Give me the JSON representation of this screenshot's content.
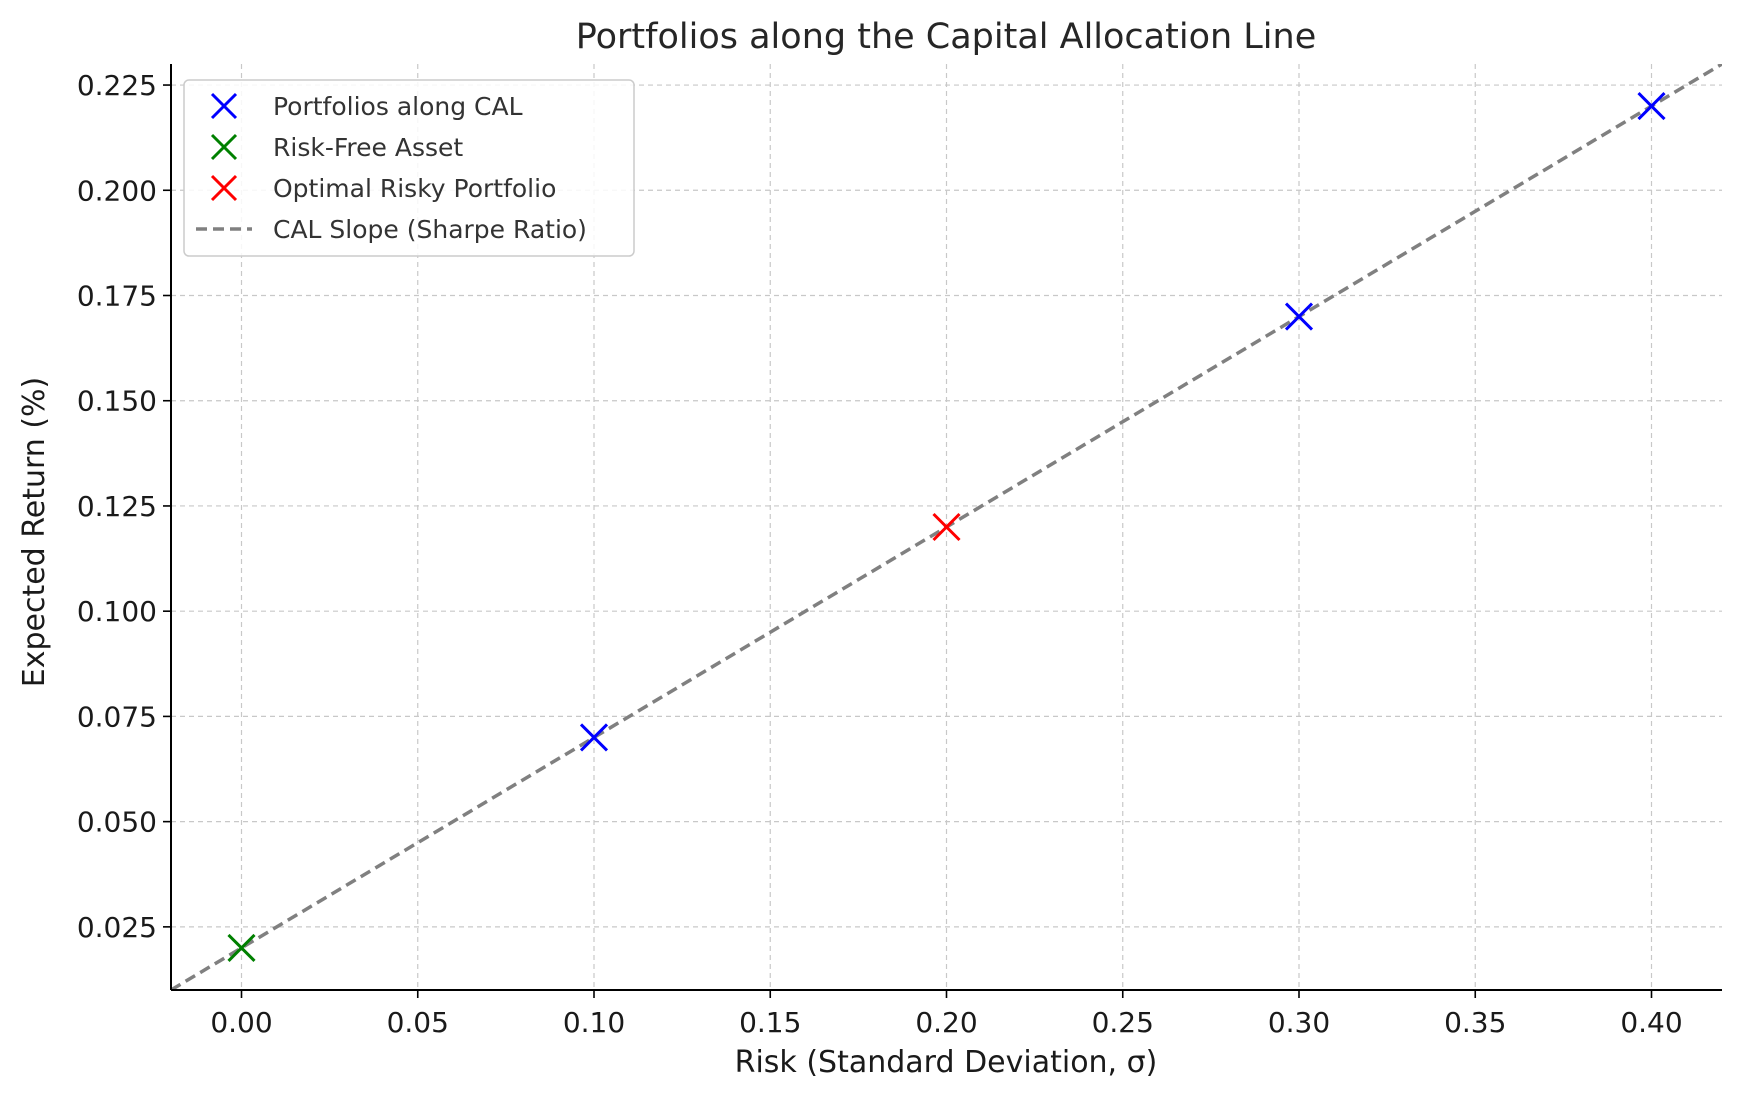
{
  "chart_data": {
    "type": "scatter",
    "title": "Portfolios along the Capital Allocation Line",
    "xlabel": "Risk (Standard Deviation, σ)",
    "ylabel": "Expected Return (%)",
    "xlim": [
      -0.02,
      0.42
    ],
    "ylim": [
      0.01,
      0.23
    ],
    "xticks": [
      "0.00",
      "0.05",
      "0.10",
      "0.15",
      "0.20",
      "0.25",
      "0.30",
      "0.35",
      "0.40"
    ],
    "yticks": [
      "0.025",
      "0.050",
      "0.075",
      "0.100",
      "0.125",
      "0.150",
      "0.175",
      "0.200",
      "0.225"
    ],
    "grid": true,
    "legend_position": "top-left",
    "series": [
      {
        "name": "Portfolios along CAL",
        "marker": "x",
        "color": "#0000ff",
        "points": [
          {
            "x": 0.1,
            "y": 0.07
          },
          {
            "x": 0.3,
            "y": 0.17
          },
          {
            "x": 0.4,
            "y": 0.22
          }
        ]
      },
      {
        "name": "Risk-Free Asset",
        "marker": "x",
        "color": "#008000",
        "points": [
          {
            "x": 0.0,
            "y": 0.02
          }
        ]
      },
      {
        "name": "Optimal Risky Portfolio",
        "marker": "x",
        "color": "#ff0000",
        "points": [
          {
            "x": 0.2,
            "y": 0.12
          }
        ]
      },
      {
        "name": "CAL Slope (Sharpe Ratio)",
        "marker": "line-dashed",
        "color": "#808080",
        "intercept": 0.02,
        "slope": 0.5
      }
    ]
  }
}
